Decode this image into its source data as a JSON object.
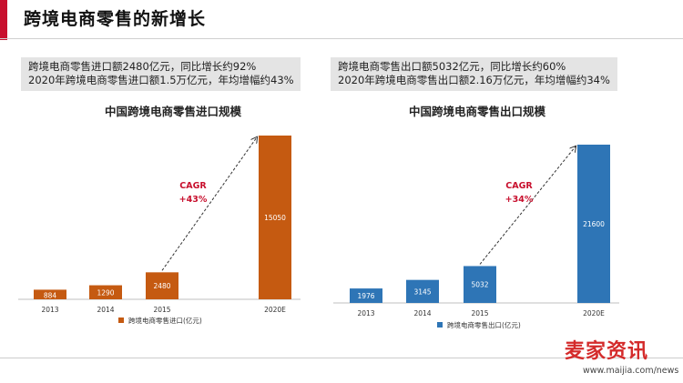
{
  "page": {
    "title": "跨境电商零售的新增长",
    "accent_color": "#c8102e"
  },
  "left_summary": {
    "line1": "跨境电商零售进口额2480亿元，同比增长约92%",
    "line2": "2020年跨境电商零售进口额1.5万亿元，年均增幅约43%"
  },
  "right_summary": {
    "line1": "跨境电商零售出口额5032亿元，同比增长约60%",
    "line2": "2020年跨境电商零售出口额2.16万亿元，年均增幅约34%"
  },
  "watermark": {
    "text": "麦家资讯",
    "url": "www.maijia.com/news"
  },
  "chart_data": [
    {
      "type": "bar",
      "title": "中国跨境电商零售进口规模",
      "categories": [
        "2013",
        "2014",
        "2015",
        "2020E"
      ],
      "series": [
        {
          "name": "跨境电商零售进口(亿元)",
          "values": [
            884,
            1290,
            2480,
            15050
          ],
          "color": "#c55a11"
        }
      ],
      "value_labels": [
        "884",
        "1290",
        "2480",
        "15050"
      ],
      "annotation": {
        "line1": "CAGR",
        "line2": "+43%",
        "color": "#c8102e"
      },
      "ylim": [
        0,
        15050
      ],
      "legend_position": "bottom"
    },
    {
      "type": "bar",
      "title": "中国跨境电商零售出口规模",
      "categories": [
        "2013",
        "2014",
        "2015",
        "2020E"
      ],
      "series": [
        {
          "name": "跨境电商零售出口(亿元)",
          "values": [
            1976,
            3145,
            5032,
            21600
          ],
          "color": "#2e75b6"
        }
      ],
      "value_labels": [
        "1976",
        "3145",
        "5032",
        "21600"
      ],
      "annotation": {
        "line1": "CAGR",
        "line2": "+34%",
        "color": "#c8102e"
      },
      "ylim": [
        0,
        21600
      ],
      "legend_position": "bottom"
    }
  ]
}
